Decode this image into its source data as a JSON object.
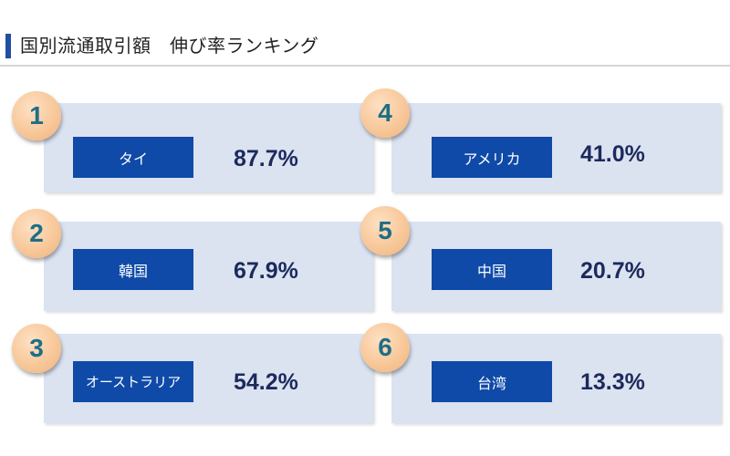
{
  "title": "国別流通取引額　伸び率ランキング",
  "colors": {
    "accent": "#1f4fa0",
    "card_bg": "#dbe3f1",
    "label_bg": "#0f4aa8",
    "badge": "#f8c89a",
    "rank_text": "#1f6e86",
    "value_text": "#1c2a5c"
  },
  "rankings": [
    {
      "rank": "1",
      "country": "タイ",
      "rate": "87.7%"
    },
    {
      "rank": "2",
      "country": "韓国",
      "rate": "67.9%"
    },
    {
      "rank": "3",
      "country": "オーストラリア",
      "rate": "54.2%"
    },
    {
      "rank": "4",
      "country": "アメリカ",
      "rate": "41.0%"
    },
    {
      "rank": "5",
      "country": "中国",
      "rate": "20.7%"
    },
    {
      "rank": "6",
      "country": "台湾",
      "rate": "13.3%"
    }
  ]
}
